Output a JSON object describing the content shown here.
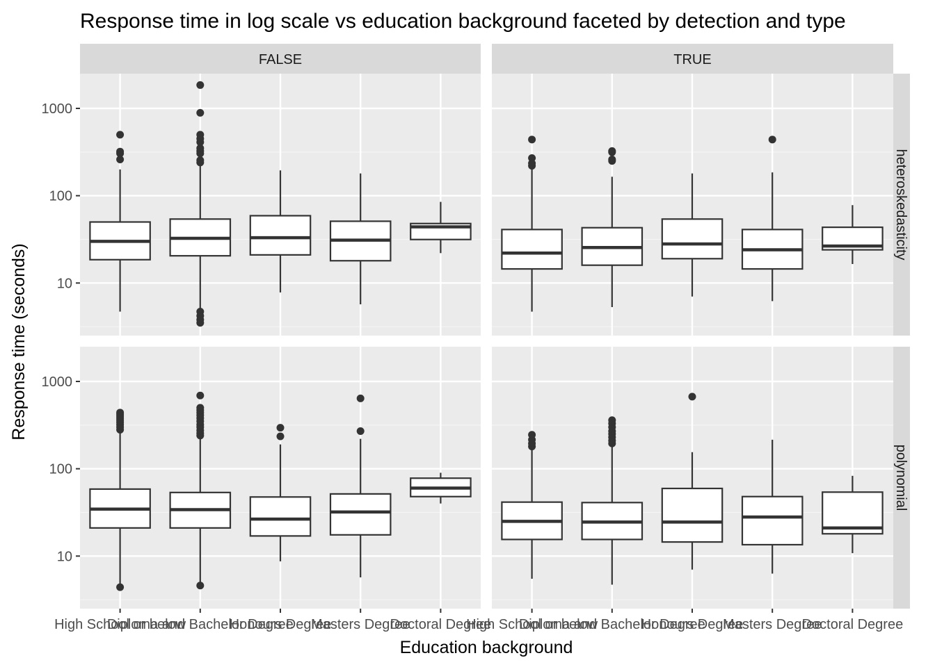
{
  "chart_data": {
    "type": "boxplot",
    "title": "Response time in log scale vs education background faceted by detection and type",
    "xlabel": "Education background",
    "ylabel": "Response time (seconds)",
    "y_scale": "log10",
    "ylim": [
      2.5,
      2500
    ],
    "y_ticks": [
      10,
      100,
      1000
    ],
    "y_tick_labels": [
      "10",
      "100",
      "1000"
    ],
    "grid": true,
    "legend": "none",
    "categories": [
      "High School or below",
      "Diploma and Bachelor Degree",
      "Honours Degree",
      "Masters Degree",
      "Doctoral Degree"
    ],
    "facet_columns": [
      "FALSE",
      "TRUE"
    ],
    "facet_rows": [
      "heteroskedasticity",
      "polynomial"
    ],
    "panels": [
      {
        "col": "FALSE",
        "row": "heteroskedasticity",
        "boxes": [
          {
            "q1": 18.5,
            "median": 30,
            "q3": 50,
            "whisker_low": 4.7,
            "whisker_high": 200,
            "outliers": [
              260,
              305,
              320,
              500
            ]
          },
          {
            "q1": 20.5,
            "median": 32.5,
            "q3": 54,
            "whisker_low": 5,
            "whisker_high": 230,
            "outliers": [
              240,
              255,
              305,
              325,
              350,
              410,
              450,
              500,
              890,
              1850,
              4.7,
              4.2,
              3.8,
              3.5
            ]
          },
          {
            "q1": 21,
            "median": 33,
            "q3": 59,
            "whisker_low": 7.8,
            "whisker_high": 195,
            "outliers": []
          },
          {
            "q1": 18,
            "median": 31,
            "q3": 51,
            "whisker_low": 5.7,
            "whisker_high": 180,
            "outliers": []
          },
          {
            "q1": 31.5,
            "median": 44,
            "q3": 48,
            "whisker_low": 22,
            "whisker_high": 85,
            "outliers": []
          }
        ]
      },
      {
        "col": "TRUE",
        "row": "heteroskedasticity",
        "boxes": [
          {
            "q1": 14.5,
            "median": 22,
            "q3": 41,
            "whisker_low": 4.7,
            "whisker_high": 210,
            "outliers": [
              220,
              235,
              270,
              440
            ]
          },
          {
            "q1": 16,
            "median": 25.5,
            "q3": 43,
            "whisker_low": 5.3,
            "whisker_high": 165,
            "outliers": [
              250,
              260,
              315,
              325
            ]
          },
          {
            "q1": 19,
            "median": 28,
            "q3": 54,
            "whisker_low": 7,
            "whisker_high": 180,
            "outliers": []
          },
          {
            "q1": 14.5,
            "median": 24,
            "q3": 41,
            "whisker_low": 6.2,
            "whisker_high": 185,
            "outliers": [
              440
            ]
          },
          {
            "q1": 24,
            "median": 26.5,
            "q3": 43.5,
            "whisker_low": 16.5,
            "whisker_high": 78,
            "outliers": []
          }
        ]
      },
      {
        "col": "FALSE",
        "row": "polynomial",
        "boxes": [
          {
            "q1": 21,
            "median": 34.5,
            "q3": 58.5,
            "whisker_low": 4.5,
            "whisker_high": 270,
            "outliers": [
              280,
              300,
              320,
              340,
              360,
              380,
              400,
              420,
              440,
              4.4
            ]
          },
          {
            "q1": 21,
            "median": 34,
            "q3": 53.5,
            "whisker_low": 4.8,
            "whisker_high": 225,
            "outliers": [
              240,
              255,
              275,
              300,
              320,
              350,
              380,
              410,
              440,
              470,
              500,
              690,
              4.6
            ]
          },
          {
            "q1": 17,
            "median": 26.5,
            "q3": 47.5,
            "whisker_low": 8.7,
            "whisker_high": 190,
            "outliers": [
              235,
              295
            ]
          },
          {
            "q1": 17.5,
            "median": 32,
            "q3": 51.5,
            "whisker_low": 5.7,
            "whisker_high": 220,
            "outliers": [
              270,
              640
            ]
          },
          {
            "q1": 48,
            "median": 60,
            "q3": 78,
            "whisker_low": 40,
            "whisker_high": 90,
            "outliers": []
          }
        ]
      },
      {
        "col": "TRUE",
        "row": "polynomial",
        "boxes": [
          {
            "q1": 15.5,
            "median": 25,
            "q3": 41.5,
            "whisker_low": 5.5,
            "whisker_high": 170,
            "outliers": [
              180,
              195,
              215,
              245
            ]
          },
          {
            "q1": 15.5,
            "median": 24.5,
            "q3": 41,
            "whisker_low": 4.7,
            "whisker_high": 185,
            "outliers": [
              195,
              210,
              230,
              250,
              270,
              300,
              330,
              360
            ]
          },
          {
            "q1": 14.5,
            "median": 24.5,
            "q3": 59.5,
            "whisker_low": 7,
            "whisker_high": 155,
            "outliers": [
              670
            ]
          },
          {
            "q1": 13.5,
            "median": 28,
            "q3": 48,
            "whisker_low": 6.3,
            "whisker_high": 215,
            "outliers": []
          },
          {
            "q1": 18,
            "median": 21,
            "q3": 54,
            "whisker_low": 10.8,
            "whisker_high": 83,
            "outliers": []
          }
        ]
      }
    ]
  },
  "colors": {
    "panel_background": "#ebebeb",
    "grid_major": "#ffffff",
    "grid_minor": "#f5f5f5",
    "strip_background": "#d9d9d9",
    "box_fill": "#ffffff",
    "box_stroke": "#333333",
    "outlier": "#333333",
    "tick_text": "#4d4d4d"
  }
}
